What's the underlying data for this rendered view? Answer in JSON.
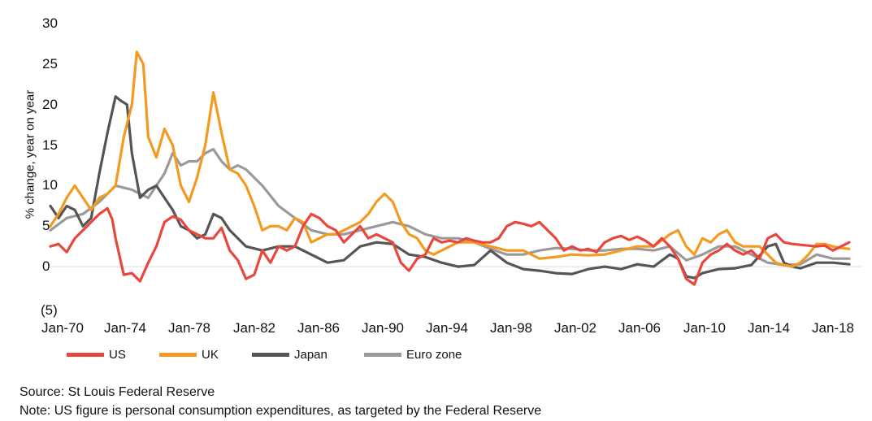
{
  "chart_data": {
    "type": "line",
    "ylabel": "% change, year on year",
    "ylim": [
      -5,
      30
    ],
    "yticks": [
      "30",
      "25",
      "20",
      "15",
      "10",
      "5",
      "0",
      "(5)"
    ],
    "ytick_values": [
      30,
      25,
      20,
      15,
      10,
      5,
      0,
      -5
    ],
    "xlim": [
      1970,
      2020
    ],
    "xticks": [
      "Jan-70",
      "Jan-74",
      "Jan-78",
      "Jan-82",
      "Jan-86",
      "Jan-90",
      "Jan-94",
      "Jan-98",
      "Jan-02",
      "Jan-06",
      "Jan-10",
      "Jan-14",
      "Jan-18"
    ],
    "xtick_values": [
      1970,
      1974,
      1978,
      1982,
      1986,
      1990,
      1994,
      1998,
      2002,
      2006,
      2010,
      2014,
      2018
    ],
    "grid": false,
    "legend_position": "bottom",
    "series": [
      {
        "name": "US",
        "color": "#e8473d",
        "x": [
          1970,
          1970.5,
          1971,
          1971.5,
          1972,
          1972.5,
          1973,
          1973.5,
          1973.8,
          1974,
          1974.5,
          1975,
          1975.5,
          1976,
          1976.5,
          1977,
          1977.5,
          1978,
          1978.5,
          1979,
          1979.5,
          1980,
          1980.5,
          1981,
          1981.5,
          1982,
          1982.5,
          1983,
          1983.5,
          1984,
          1984.5,
          1985,
          1985.5,
          1986,
          1986.5,
          1987,
          1987.5,
          1988,
          1988.5,
          1989,
          1989.5,
          1990,
          1990.5,
          1991,
          1991.5,
          1992,
          1992.5,
          1993,
          1993.5,
          1994,
          1994.5,
          1995,
          1995.5,
          1996,
          1996.5,
          1997,
          1997.5,
          1998,
          1998.5,
          1999,
          1999.5,
          2000,
          2000.5,
          2001,
          2001.5,
          2002,
          2002.5,
          2003,
          2003.5,
          2004,
          2004.5,
          2005,
          2005.5,
          2006,
          2006.5,
          2007,
          2007.5,
          2008,
          2008.5,
          2009,
          2009.5,
          2010,
          2010.5,
          2011,
          2011.5,
          2012,
          2012.5,
          2013,
          2013.5,
          2014,
          2014.5,
          2015,
          2015.5,
          2016,
          2016.5,
          2017,
          2017.5,
          2018,
          2018.5,
          2019
        ],
        "y": [
          2.5,
          2.8,
          1.8,
          3.5,
          4.5,
          5.5,
          6.5,
          7.2,
          5.8,
          3.5,
          -1.0,
          -0.8,
          -1.8,
          0.5,
          2.5,
          5.5,
          6.2,
          5.8,
          4.5,
          4.0,
          3.5,
          3.5,
          4.8,
          2.0,
          0.8,
          -1.5,
          -1.0,
          2.0,
          0.5,
          2.5,
          2.0,
          2.5,
          5.0,
          6.5,
          6.0,
          5.0,
          4.5,
          3.0,
          4.0,
          5.0,
          3.5,
          4.0,
          3.5,
          3.0,
          0.5,
          -0.5,
          1.0,
          1.5,
          3.5,
          3.0,
          3.2,
          3.0,
          3.5,
          3.2,
          3.0,
          3.0,
          3.5,
          5.0,
          5.5,
          5.3,
          5.0,
          5.5,
          4.5,
          3.5,
          2.0,
          2.5,
          2.0,
          2.2,
          1.8,
          3.0,
          3.5,
          3.8,
          3.3,
          3.7,
          3.2,
          2.5,
          3.5,
          2.5,
          1.0,
          -1.5,
          -2.2,
          0.5,
          1.5,
          2.0,
          2.8,
          2.0,
          1.5,
          2.0,
          1.0,
          3.5,
          4.0,
          3.0,
          2.8,
          2.7,
          2.6,
          2.5,
          2.6,
          2.0,
          2.5,
          3.0
        ],
        "label": "US"
      },
      {
        "name": "UK",
        "color": "#f39a21",
        "x": [
          1970,
          1970.5,
          1971,
          1971.5,
          1972,
          1972.5,
          1973,
          1973.5,
          1974,
          1974.5,
          1975,
          1975.3,
          1975.7,
          1976,
          1976.5,
          1977,
          1977.5,
          1978,
          1978.5,
          1979,
          1979.5,
          1980,
          1980.5,
          1981,
          1981.5,
          1982,
          1982.5,
          1983,
          1983.5,
          1984,
          1984.5,
          1985,
          1985.5,
          1986,
          1986.5,
          1987,
          1987.5,
          1988,
          1988.5,
          1989,
          1989.5,
          1990,
          1990.5,
          1991,
          1991.5,
          1992,
          1992.5,
          1993,
          1993.5,
          1994,
          1995,
          1996,
          1997,
          1998,
          1999,
          2000,
          2001,
          2002,
          2003,
          2004,
          2005,
          2006,
          2007,
          2008,
          2008.5,
          2009,
          2009.5,
          2010,
          2010.5,
          2011,
          2011.5,
          2012,
          2012.5,
          2013,
          2013.5,
          2014,
          2014.5,
          2015,
          2015.5,
          2016,
          2016.5,
          2017,
          2017.5,
          2018,
          2018.5,
          2019
        ],
        "y": [
          5.0,
          6.5,
          8.5,
          10.0,
          8.5,
          7.0,
          8.5,
          9.0,
          10.0,
          16.0,
          20.0,
          26.5,
          25.0,
          16.0,
          13.5,
          17.0,
          15.0,
          10.0,
          8.0,
          11.0,
          15.0,
          21.5,
          16.5,
          12.0,
          11.5,
          10.0,
          7.5,
          4.5,
          5.0,
          5.0,
          4.5,
          6.0,
          5.5,
          3.0,
          3.5,
          4.0,
          4.0,
          4.5,
          5.0,
          5.5,
          6.5,
          8.0,
          9.0,
          8.0,
          5.5,
          4.0,
          3.5,
          2.0,
          1.5,
          2.0,
          3.0,
          3.0,
          2.5,
          2.0,
          2.0,
          1.0,
          1.2,
          1.5,
          1.4,
          1.5,
          2.0,
          2.5,
          2.5,
          4.0,
          4.5,
          2.5,
          1.5,
          3.5,
          3.0,
          4.0,
          4.5,
          3.0,
          2.5,
          2.5,
          2.5,
          1.5,
          0.5,
          0.2,
          0.0,
          0.5,
          1.5,
          2.8,
          2.8,
          2.5,
          2.3,
          2.2
        ],
        "label": "UK"
      },
      {
        "name": "Japan",
        "color": "#555555",
        "x": [
          1970,
          1970.5,
          1971,
          1971.5,
          1972,
          1972.5,
          1973,
          1973.5,
          1974,
          1974.3,
          1974.7,
          1975,
          1975.5,
          1976,
          1976.5,
          1977,
          1977.5,
          1978,
          1978.5,
          1979,
          1979.5,
          1980,
          1980.5,
          1981,
          1981.5,
          1982,
          1983,
          1984,
          1985,
          1986,
          1987,
          1988,
          1989,
          1990,
          1991,
          1992,
          1993,
          1994,
          1995,
          1996,
          1997,
          1998,
          1999,
          2000,
          2001,
          2002,
          2003,
          2004,
          2005,
          2006,
          2007,
          2008,
          2008.5,
          2009,
          2009.5,
          2010,
          2011,
          2012,
          2013,
          2014,
          2014.5,
          2015,
          2015.5,
          2016,
          2017,
          2018,
          2019
        ],
        "y": [
          7.5,
          6.0,
          7.5,
          7.0,
          5.0,
          6.0,
          11.5,
          16.5,
          21.0,
          20.5,
          20.0,
          14.0,
          8.5,
          9.5,
          10.0,
          8.5,
          7.0,
          5.0,
          4.5,
          3.5,
          4.0,
          6.5,
          6.0,
          4.5,
          3.5,
          2.5,
          2.0,
          2.5,
          2.5,
          1.5,
          0.5,
          0.8,
          2.5,
          3.0,
          2.8,
          1.5,
          1.2,
          0.5,
          0.0,
          0.2,
          2.0,
          0.5,
          -0.3,
          -0.5,
          -0.8,
          -0.9,
          -0.3,
          0.0,
          -0.3,
          0.3,
          0.0,
          1.5,
          1.0,
          -1.2,
          -1.4,
          -0.8,
          -0.3,
          -0.2,
          0.2,
          2.5,
          2.8,
          0.5,
          0.0,
          -0.2,
          0.5,
          0.5,
          0.3
        ],
        "label": "Japan"
      },
      {
        "name": "Euro zone",
        "color": "#9a9a9a",
        "x": [
          1970,
          1971,
          1972,
          1973,
          1974,
          1975,
          1976,
          1977,
          1977.5,
          1978,
          1978.5,
          1979,
          1979.5,
          1980,
          1980.5,
          1981,
          1981.5,
          1982,
          1983,
          1984,
          1985,
          1986,
          1987,
          1988,
          1989,
          1990,
          1991,
          1992,
          1993,
          1994,
          1995,
          1996,
          1997,
          1998,
          1999,
          2000,
          2001,
          2002,
          2003,
          2004,
          2005,
          2006,
          2007,
          2008,
          2009,
          2010,
          2011,
          2012,
          2013,
          2014,
          2015,
          2016,
          2017,
          2018,
          2019
        ],
        "y": [
          4.5,
          6.0,
          6.5,
          8.0,
          10.0,
          9.5,
          8.5,
          11.5,
          14.0,
          12.5,
          13.0,
          13.0,
          14.0,
          14.5,
          13.0,
          12.0,
          12.5,
          12.0,
          10.0,
          7.5,
          6.0,
          4.5,
          4.0,
          4.0,
          4.5,
          5.0,
          5.5,
          5.0,
          4.0,
          3.5,
          3.5,
          3.0,
          2.2,
          1.5,
          1.5,
          2.0,
          2.3,
          2.2,
          2.0,
          2.0,
          2.2,
          2.2,
          2.0,
          2.5,
          0.8,
          1.5,
          2.5,
          2.5,
          1.5,
          0.5,
          0.2,
          0.3,
          1.5,
          1.0,
          1.0
        ],
        "label": "Euro zone"
      }
    ]
  },
  "footer": {
    "source": "Source: St Louis Federal Reserve",
    "note": "Note: US figure is personal consumption expenditures, as targeted by the Federal Reserve"
  }
}
